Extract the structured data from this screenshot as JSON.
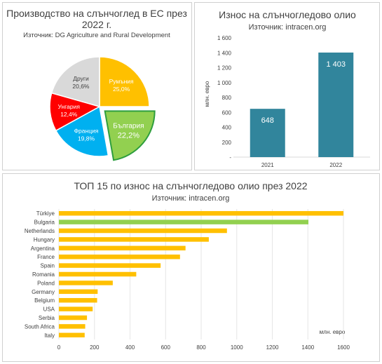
{
  "chart_data": [
    {
      "type": "pie",
      "title": "Производство на слънчоглед в ЕС през",
      "title_line2": "2022 г.",
      "subtitle": "Източник: DG Agriculture and Rural Development",
      "slices": [
        {
          "label": "Румъния",
          "value": 25.0,
          "value_label": "25,0%",
          "color": "#FFC000",
          "text_color": "#ffffff"
        },
        {
          "label": "България",
          "value": 22.2,
          "value_label": "22,2%",
          "color": "#92D050",
          "text_color": "#ffffff",
          "exploded": true
        },
        {
          "label": "Франция",
          "value": 19.8,
          "value_label": "19,8%",
          "color": "#00B0F0",
          "text_color": "#ffffff"
        },
        {
          "label": "Унгария",
          "value": 12.4,
          "value_label": "12,4%",
          "color": "#FF0000",
          "text_color": "#ffffff"
        },
        {
          "label": "Други",
          "value": 20.6,
          "value_label": "20,6%",
          "color": "#D9D9D9",
          "text_color": "#404040"
        }
      ]
    },
    {
      "type": "bar",
      "title": "Износ на слънчогледово олио",
      "subtitle": "Източник: intracen.org",
      "categories": [
        "2021",
        "2022"
      ],
      "values": [
        648,
        1403
      ],
      "value_labels": [
        "648",
        "1 403"
      ],
      "ylabel": "млн. евро",
      "ylim": [
        0,
        1600
      ],
      "ytick_values": [
        0,
        200,
        400,
        600,
        800,
        1000,
        1200,
        1400,
        1600
      ],
      "ytick_labels": [
        "-",
        "200",
        "400",
        "600",
        "800",
        "1 000",
        "1 200",
        "1 400",
        "1 600"
      ],
      "color": "#31859C"
    },
    {
      "type": "bar",
      "orientation": "horizontal",
      "title": "ТОП 15 по износ на слънчогледово олио през 2022",
      "subtitle": "Източник: intracen.org",
      "unit_label": "млн. евро",
      "categories": [
        "Türkiye",
        "Bulgaria",
        "Netherlands",
        "Hungary",
        "Argentina",
        "France",
        "Spain",
        "Romania",
        "Poland",
        "Germany",
        "Belgium",
        "USA",
        "Serbia",
        "South Africa",
        "Italy"
      ],
      "values": [
        1600,
        1403,
        945,
        843,
        712,
        681,
        572,
        435,
        303,
        218,
        215,
        190,
        158,
        148,
        145
      ],
      "xlim": [
        0,
        1600
      ],
      "xtick_values": [
        0,
        200,
        400,
        600,
        800,
        1000,
        1200,
        1400,
        1600
      ],
      "xtick_labels": [
        "0",
        "200",
        "400",
        "600",
        "800",
        "1000",
        "1200",
        "1400",
        "1600"
      ],
      "color": "#FFC000",
      "highlight": {
        "category": "Bulgaria",
        "color": "#92D050"
      },
      "grid": true
    }
  ]
}
